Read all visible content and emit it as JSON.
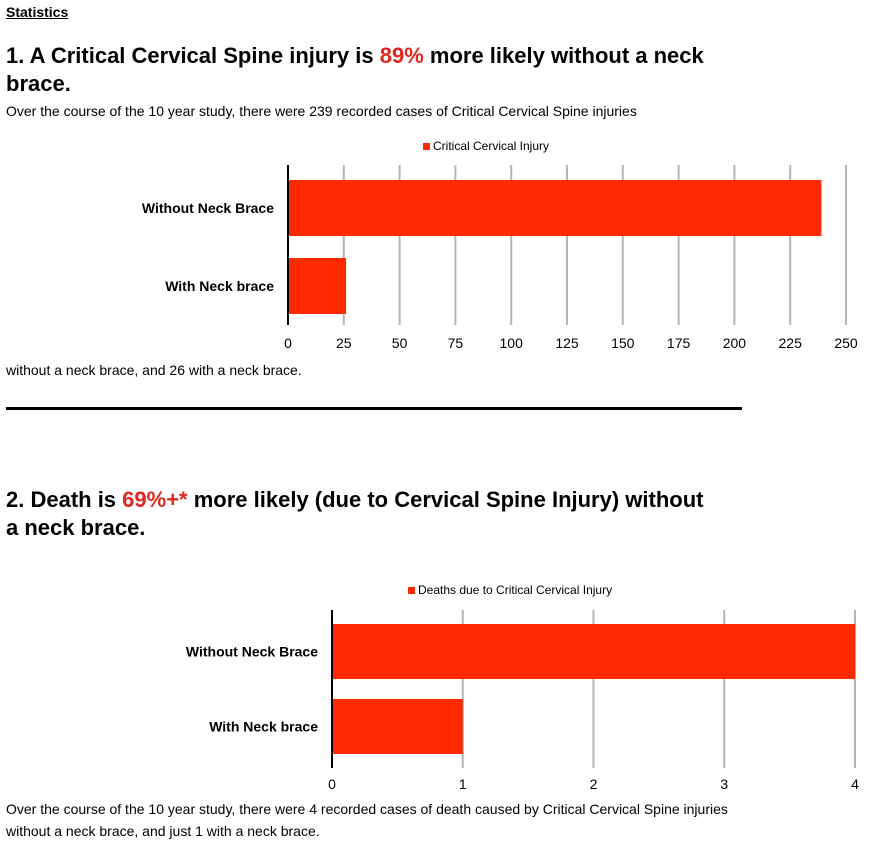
{
  "section_label": "Statistics",
  "stat1": {
    "heading_pre": "1. A Critical Cervical Spine injury is ",
    "heading_highlight": "89%",
    "heading_post": " more likely without a neck brace.",
    "intro": "Over the course of the 10 year study, there were 239 recorded cases of Critical Cervical Spine injuries",
    "outro": "without a neck brace, and 26 with a neck brace."
  },
  "stat2": {
    "heading_pre": "2. Death is ",
    "heading_highlight": "69%+*",
    "heading_post": " more likely (due to Cervical Spine Injury) without a neck brace.",
    "footer": "Over the course of the 10 year study, there were 4 recorded cases of death caused by Critical Cervical Spine injuries without a neck brace, and just 1 with a neck brace."
  },
  "colors": {
    "bar": "#ff2a00",
    "highlight": "#e0271f",
    "grid": "#b5b5b5"
  },
  "chart_data": [
    {
      "type": "bar",
      "orientation": "horizontal",
      "title": "",
      "categories": [
        "Without Neck Brace",
        "With Neck brace"
      ],
      "series": [
        {
          "name": "Critical Cervical Injury",
          "values": [
            239,
            26
          ]
        }
      ],
      "xlim": [
        0,
        250
      ],
      "ticks": [
        "0",
        "25",
        "50",
        "75",
        "100",
        "125",
        "150",
        "175",
        "200",
        "225",
        "250"
      ],
      "legend_position": "top",
      "grid": true
    },
    {
      "type": "bar",
      "orientation": "horizontal",
      "title": "",
      "categories": [
        "Without Neck Brace",
        "With Neck brace"
      ],
      "series": [
        {
          "name": "Deaths due to Critical Cervical Injury",
          "values": [
            4,
            1
          ]
        }
      ],
      "xlim": [
        0,
        4
      ],
      "ticks": [
        "0",
        "1",
        "2",
        "3",
        "4"
      ],
      "legend_position": "top",
      "grid": true
    }
  ]
}
